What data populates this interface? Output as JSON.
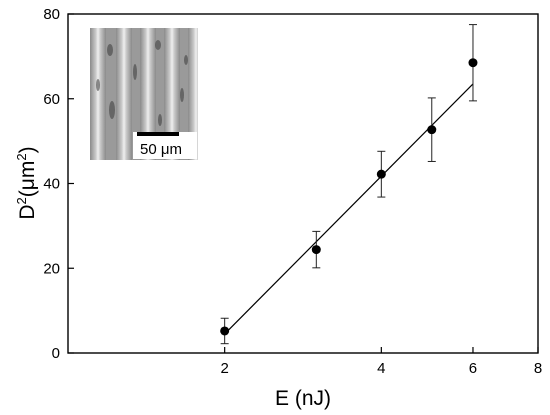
{
  "chart_data": {
    "type": "scatter",
    "xlabel": "E (nJ)",
    "ylabel_base": "D",
    "ylabel_sup": "2",
    "ylabel_unit_open": "(μm",
    "ylabel_unit_sup": "2",
    "ylabel_unit_close": ")",
    "xlim": [
      1,
      8
    ],
    "ylim": [
      0,
      80
    ],
    "xticks": [
      2,
      4,
      6,
      8
    ],
    "yticks": [
      0,
      20,
      40,
      60,
      80
    ],
    "x_scale": "log",
    "grid": false,
    "series": [
      {
        "points": [
          {
            "x": 2.0,
            "y": 5.2,
            "err": 3.0
          },
          {
            "x": 3.0,
            "y": 24.4,
            "err": 4.3
          },
          {
            "x": 4.0,
            "y": 42.2,
            "err": 5.4
          },
          {
            "x": 5.0,
            "y": 52.7,
            "err": 7.5
          },
          {
            "x": 6.0,
            "y": 68.5,
            "err": 9.0
          }
        ]
      }
    ],
    "fit_line": {
      "x": [
        2.0,
        6.0
      ],
      "y": [
        4.5,
        63.5
      ]
    },
    "inset": {
      "type": "microscope-image",
      "scale_bar_label": "50 μm"
    }
  }
}
